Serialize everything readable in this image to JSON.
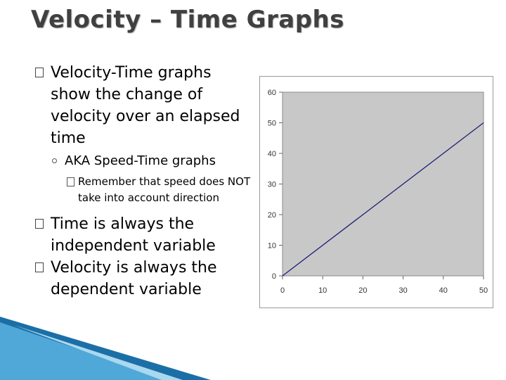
{
  "slide": {
    "title": "Velocity – Time Graphs",
    "bullets": [
      {
        "text": "Velocity-Time graphs show the change of velocity over an elapsed time",
        "level": 1
      },
      {
        "text": "AKA Speed-Time graphs",
        "level": 2
      },
      {
        "text": "Remember that speed does NOT take into account direction",
        "level": 3
      },
      {
        "text": "Time is always the independent variable",
        "level": 1
      },
      {
        "text": "Velocity is always the dependent variable",
        "level": 1
      }
    ]
  },
  "chart_data": {
    "type": "line",
    "title": "",
    "xlabel": "",
    "ylabel": "",
    "x_ticks": [
      0,
      10,
      20,
      30,
      40,
      50
    ],
    "y_ticks": [
      0,
      10,
      20,
      30,
      40,
      50,
      60
    ],
    "xlim": [
      0,
      50
    ],
    "ylim": [
      0,
      60
    ],
    "grid": false,
    "legend": "none",
    "series": [
      {
        "x": [
          0,
          50
        ],
        "y": [
          0,
          50
        ]
      }
    ],
    "colors": {
      "plot_background": "#c8c8c8",
      "line": "#1f1f7a",
      "axis_text": "#333333"
    }
  },
  "decor": {
    "stripe_colors": [
      "#1b6fa6",
      "#4fa8d8",
      "#a9d8ef"
    ]
  }
}
